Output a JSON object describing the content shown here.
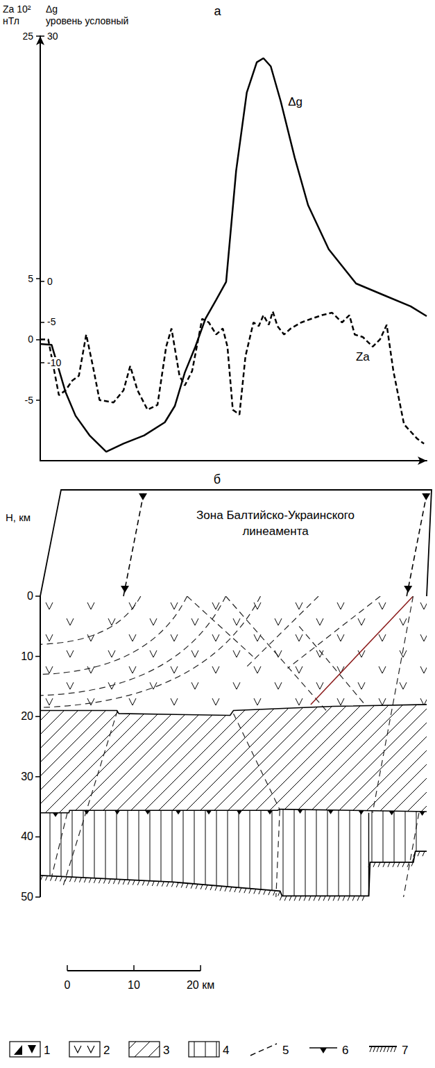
{
  "chart_data": {
    "type": "line",
    "title": "а",
    "ylabel": "Za 10²\nнТл",
    "y2label": "Δg\nуровень условный",
    "xlim": [
      0,
      58
    ],
    "ylim": [
      -10,
      25
    ],
    "yticks": [
      -5,
      0,
      5,
      25
    ],
    "y2lim": [
      -22,
      30
    ],
    "y2ticks": [
      -10,
      -5,
      0,
      30
    ],
    "tick_labels": "y",
    "grid": false,
    "series": [
      {
        "name": "Δg",
        "axis": "y2",
        "color": "#000000",
        "line_style": "solid",
        "x": [
          0.0,
          1.7,
          3.8,
          5.3,
          7.4,
          9.9,
          12.5,
          15.6,
          18.7,
          20.2,
          21.7,
          23.3,
          24.8,
          26.4,
          27.9,
          29.4,
          31.0,
          32.5,
          33.5,
          34.6,
          36.1,
          38.2,
          40.2,
          43.3,
          47.4,
          51.5,
          55.6,
          58.0
        ],
        "values": [
          -7.7,
          -7.8,
          -13.6,
          -16.5,
          -18.9,
          -20.9,
          -19.9,
          -18.9,
          -17.3,
          -15.3,
          -11.2,
          -8.0,
          -4.6,
          -2.3,
          -0.1,
          13.5,
          23.1,
          26.8,
          27.3,
          26.3,
          22.0,
          15.1,
          9.3,
          3.9,
          -0.3,
          -1.7,
          -3.1,
          -4.3
        ]
      },
      {
        "name": "Za",
        "color": "#000000",
        "line_style": "dashed",
        "x": [
          0.0,
          1.2,
          2.8,
          3.8,
          4.8,
          5.8,
          6.9,
          7.9,
          8.9,
          11.0,
          12.5,
          13.5,
          14.6,
          16.1,
          17.6,
          18.9,
          19.7,
          20.9,
          21.7,
          22.8,
          24.3,
          25.3,
          26.4,
          27.4,
          28.1,
          28.9,
          29.9,
          30.8,
          32.0,
          32.8,
          33.5,
          34.3,
          34.9,
          35.6,
          36.6,
          37.6,
          39.2,
          40.7,
          42.3,
          43.8,
          45.3,
          46.4,
          47.2,
          48.4,
          49.9,
          51.0,
          52.0,
          53.0,
          54.6,
          56.6,
          57.6
        ],
        "values": [
          0,
          0,
          -4.6,
          -4.2,
          -3.4,
          -3.0,
          0.4,
          -2.2,
          -5.0,
          -5.2,
          -4.2,
          -2.2,
          -4.2,
          -5.8,
          -5.4,
          -0.6,
          0.9,
          -3.0,
          -3.8,
          -2.6,
          1.7,
          1.4,
          0.4,
          0.9,
          -0.6,
          -5.8,
          -6.2,
          -1.4,
          1.4,
          1.1,
          2.0,
          1.2,
          2.3,
          1.1,
          0.4,
          0.9,
          1.4,
          1.7,
          2.0,
          2.2,
          1.4,
          2.0,
          0.4,
          0.2,
          -0.6,
          0,
          1.2,
          -2.6,
          -7.0,
          -8.2,
          -8.6
        ]
      }
    ]
  },
  "section": {
    "title": "б",
    "axis_title": "H, км",
    "depth_lim": [
      0,
      50
    ],
    "depth_ticks": [
      0,
      10,
      20,
      30,
      40,
      50
    ],
    "zone": {
      "label": "Зона Балтийско-Украинского линеамента",
      "km": [
        12.5,
        55
      ]
    },
    "boundaries": {
      "upper_crust_base": [
        [
          0,
          19
        ],
        [
          11.5,
          19
        ],
        [
          11.8,
          19.5
        ],
        [
          28.5,
          19.8
        ],
        [
          29,
          19
        ],
        [
          44,
          18.3
        ],
        [
          58,
          18
        ]
      ],
      "lower_layer_top": [
        [
          0,
          36
        ],
        [
          4.3,
          36
        ],
        [
          4.4,
          35.6
        ],
        [
          35.6,
          35.6
        ],
        [
          36,
          35.4
        ],
        [
          58,
          35.8
        ]
      ],
      "moho": [
        [
          0,
          46.4
        ],
        [
          20,
          47.5
        ],
        [
          36,
          49
        ],
        [
          36.3,
          49.8
        ],
        [
          49.3,
          49.8
        ],
        [
          49.5,
          44.2
        ],
        [
          56,
          44.2
        ],
        [
          56.3,
          42.4
        ],
        [
          58,
          42.4
        ]
      ]
    },
    "scale_bar": [
      0,
      10,
      {
        "value": 20,
        "label": "20 км"
      }
    ],
    "key": [
      1,
      2,
      3,
      4,
      5,
      6,
      7
    ]
  }
}
